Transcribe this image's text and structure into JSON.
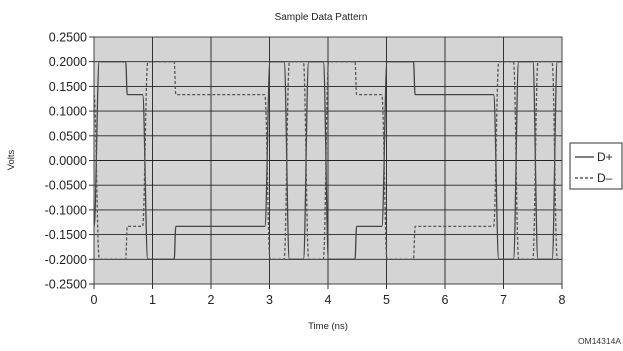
{
  "chart_data": {
    "type": "line",
    "title": "Sample Data Pattern",
    "xlabel": "Time (ns)",
    "ylabel": "Volts",
    "xlim": [
      0,
      8
    ],
    "ylim": [
      -0.25,
      0.25
    ],
    "x_ticks": [
      "0",
      "1",
      "2",
      "3",
      "4",
      "5",
      "6",
      "7",
      "8"
    ],
    "y_ticks": [
      "0.2500",
      "0.2000",
      "0.1500",
      "0.1000",
      "0.0500",
      "0.0000",
      "-0.0500",
      "-0.1000",
      "-0.1500",
      "-0.2000",
      "-0.2500"
    ],
    "grid": true,
    "legend_position": "right",
    "figure_id": "OM14314A",
    "series": [
      {
        "name": "D+",
        "style": "solid",
        "color": "#444444",
        "levels": {
          "high": 0.2,
          "settled_high": 0.1333,
          "low": -0.2,
          "settled_low": -0.1333
        },
        "transition_times_ns": [
          0.0,
          0.83,
          2.92,
          3.25,
          3.58,
          3.92,
          4.92,
          6.83,
          7.17,
          7.5,
          7.83
        ],
        "initial_level": "low",
        "settle_delay_ns": 0.45
      },
      {
        "name": "D–",
        "style": "dashed",
        "color": "#555555",
        "levels": {
          "high": 0.2,
          "settled_high": 0.1333,
          "low": -0.2,
          "settled_low": -0.1333
        },
        "transition_times_ns": [
          0.0,
          0.83,
          2.92,
          3.25,
          3.58,
          3.92,
          4.92,
          6.83,
          7.17,
          7.5,
          7.83
        ],
        "initial_level": "high",
        "settle_delay_ns": 0.45
      }
    ]
  }
}
